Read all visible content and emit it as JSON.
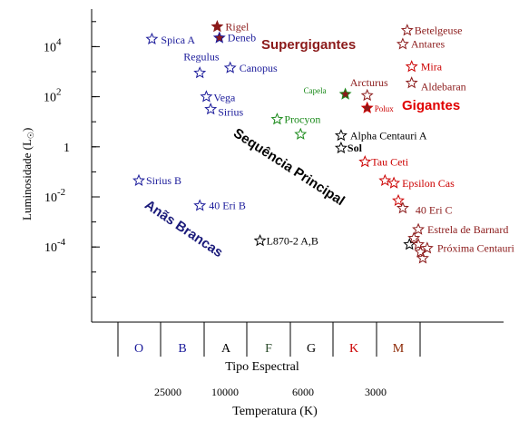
{
  "chart_data": {
    "type": "scatter",
    "title": "",
    "xlabel": "Tipo Espectral",
    "ylabel": "Luminosidade (L",
    "ylabel_sub": "☉",
    "ylabel_close": ")",
    "x2label": "Temperatura (K)",
    "y_log": true,
    "ylim_log10": [
      -7,
      5.5
    ],
    "grid": false,
    "y_ticks": [
      {
        "base": "10",
        "exp": "4",
        "log10": 4
      },
      {
        "base": "10",
        "exp": "2",
        "log10": 2
      },
      {
        "base": "1",
        "exp": "",
        "log10": 0
      },
      {
        "base": "10",
        "exp": "-2",
        "log10": -2
      },
      {
        "base": "10",
        "exp": "-4",
        "log10": -4
      }
    ],
    "x_ticks": [
      {
        "label": "O",
        "color": "#1a1a9a"
      },
      {
        "label": "B",
        "color": "#1a1a9a"
      },
      {
        "label": "A",
        "color": "#000000"
      },
      {
        "label": "F",
        "color": "#2a4a2a"
      },
      {
        "label": "G",
        "color": "#000000"
      },
      {
        "label": "K",
        "color": "#cc0000"
      },
      {
        "label": "M",
        "color": "#8b2500"
      }
    ],
    "temperature_ticks": [
      "25000",
      "10000",
      "6000",
      "3000"
    ],
    "region_labels": [
      {
        "text": "Supergigantes",
        "color": "#8b1a1a"
      },
      {
        "text": "Gigantes",
        "color": "#e00000"
      },
      {
        "text": "Sequência Principal",
        "color": "#000000"
      },
      {
        "text": "Anãs Brancas",
        "color": "#1a1a7a"
      }
    ],
    "stars": [
      {
        "name": "Rigel",
        "x": 2.8,
        "y": 4.8,
        "color": "#8b1a1a",
        "fill": "#8b1a1a"
      },
      {
        "name": "Deneb",
        "x": 2.85,
        "y": 4.35,
        "color": "#1a1a9a",
        "fill": "#8b1a1a"
      },
      {
        "name": "Spica A",
        "x": 1.3,
        "y": 4.3,
        "color": "#1a1a9a",
        "fill": ""
      },
      {
        "name": "Betelgeuse",
        "x": 7.2,
        "y": 4.65,
        "color": "#8b1a1a",
        "fill": ""
      },
      {
        "name": "Antares",
        "x": 7.1,
        "y": 4.1,
        "color": "#8b1a1a",
        "fill": ""
      },
      {
        "name": "Regulus",
        "x": 2.4,
        "y": 2.95,
        "color": "#1a1a9a",
        "fill": ""
      },
      {
        "name": "Canopus",
        "x": 3.1,
        "y": 3.15,
        "color": "#1a1a9a",
        "fill": ""
      },
      {
        "name": "Mira",
        "x": 8.3,
        "y": 3.2,
        "color": "#cc0000",
        "fill": ""
      },
      {
        "name": "Aldebaran",
        "x": 7.3,
        "y": 2.55,
        "color": "#8b1a1a",
        "fill": ""
      },
      {
        "name": "Arcturus",
        "x": 6.3,
        "y": 2.05,
        "color": "#8b1a1a",
        "fill": ""
      },
      {
        "name": "Capela",
        "x": 5.8,
        "y": 2.1,
        "color": "#1a8a1a",
        "fill": "#8b1a1a"
      },
      {
        "name": "Polux",
        "x": 6.3,
        "y": 1.55,
        "color": "#cc0000",
        "fill": "#8b1a1a"
      },
      {
        "name": "Vega",
        "x": 2.55,
        "y": 2.0,
        "color": "#1a1a9a",
        "fill": ""
      },
      {
        "name": "Sirius",
        "x": 2.65,
        "y": 1.5,
        "color": "#1a1a9a",
        "fill": ""
      },
      {
        "name": "Procyon",
        "x": 4.2,
        "y": 1.1,
        "color": "#1a8a1a",
        "fill": ""
      },
      {
        "name": "",
        "x": 4.75,
        "y": 0.5,
        "color": "#1a8a1a",
        "fill": ""
      },
      {
        "name": "Alpha Centauri A",
        "x": 5.7,
        "y": 0.45,
        "color": "#000000",
        "fill": ""
      },
      {
        "name": "Sol",
        "x": 5.7,
        "y": -0.05,
        "color": "#000000",
        "fill": ""
      },
      {
        "name": "Tau Ceti",
        "x": 6.25,
        "y": -0.6,
        "color": "#cc0000",
        "fill": ""
      },
      {
        "name": "",
        "x": 6.7,
        "y": -1.35,
        "color": "#cc0000",
        "fill": ""
      },
      {
        "name": "Epsilon Cas",
        "x": 6.9,
        "y": -1.45,
        "color": "#cc0000",
        "fill": ""
      },
      {
        "name": "",
        "x": 7.0,
        "y": -2.15,
        "color": "#cc0000",
        "fill": ""
      },
      {
        "name": "40 Eri C",
        "x": 7.1,
        "y": -2.45,
        "color": "#8b1a1a",
        "fill": ""
      },
      {
        "name": "Estrela de Barnard",
        "x": 7.45,
        "y": -3.3,
        "color": "#8b1a1a",
        "fill": ""
      },
      {
        "name": "",
        "x": 7.35,
        "y": -3.65,
        "color": "#8b1a1a",
        "fill": ""
      },
      {
        "name": "",
        "x": 7.25,
        "y": -3.9,
        "color": "#000000",
        "fill": ""
      },
      {
        "name": "",
        "x": 7.45,
        "y": -3.9,
        "color": "#8b1a1a",
        "fill": ""
      },
      {
        "name": "",
        "x": 7.5,
        "y": -4.2,
        "color": "#8b1a1a",
        "fill": ""
      },
      {
        "name": "Próxima Centauri",
        "x": 7.65,
        "y": -4.05,
        "color": "#8b1a1a",
        "fill": ""
      },
      {
        "name": "",
        "x": 7.55,
        "y": -4.45,
        "color": "#8b1a1a",
        "fill": ""
      },
      {
        "name": "Sirius B",
        "x": 1.0,
        "y": -1.35,
        "color": "#1a1a9a",
        "fill": ""
      },
      {
        "name": "40 Eri B",
        "x": 2.4,
        "y": -2.35,
        "color": "#1a1a9a",
        "fill": ""
      },
      {
        "name": "L870-2 A,B",
        "x": 3.8,
        "y": -3.75,
        "color": "#000000",
        "fill": ""
      }
    ]
  }
}
